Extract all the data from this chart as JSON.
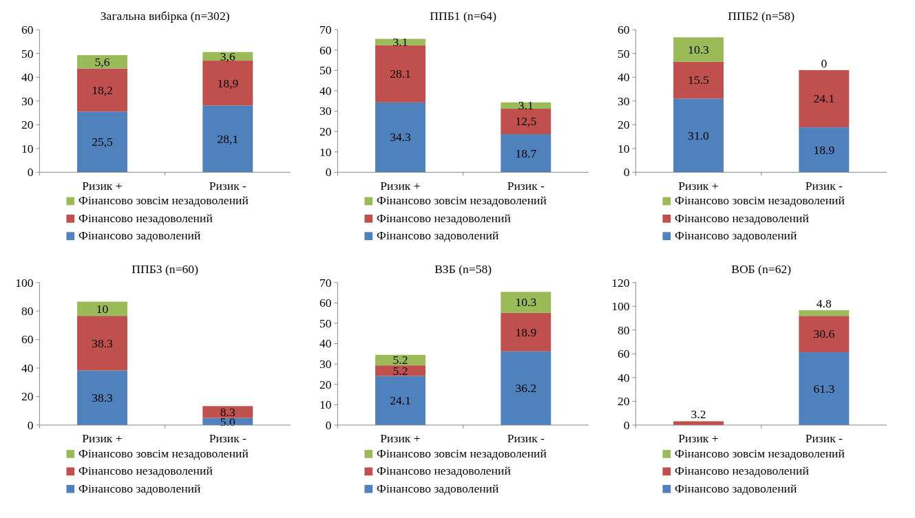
{
  "chart_data": [
    {
      "type": "bar",
      "stacked": true,
      "title": "Загальна вибірка (n=302)",
      "categories": [
        "Ризик +",
        "Ризик -"
      ],
      "ylim": [
        0,
        60
      ],
      "yticks": [
        0,
        10,
        20,
        30,
        40,
        50,
        60
      ],
      "legend": "bottom",
      "grid": false,
      "series": [
        {
          "name": "Фінансово задоволений",
          "color": "#4f81bd",
          "values": [
            25.5,
            28.1
          ],
          "value_labels": [
            "25,5",
            "28,1"
          ]
        },
        {
          "name": "Фінансово незадоволений",
          "color": "#c0504d",
          "values": [
            18.2,
            18.9
          ],
          "value_labels": [
            "18,2",
            "18,9"
          ]
        },
        {
          "name": "Фінансово зовсім незадоволений",
          "color": "#9bbb59",
          "values": [
            5.6,
            3.6
          ],
          "value_labels": [
            "5,6",
            "3,6"
          ]
        }
      ]
    },
    {
      "type": "bar",
      "stacked": true,
      "title": "ППБ1 (n=64)",
      "categories": [
        "Ризик +",
        "Ризик -"
      ],
      "ylim": [
        0,
        70
      ],
      "yticks": [
        0,
        10,
        20,
        30,
        40,
        50,
        60,
        70
      ],
      "legend": "bottom",
      "grid": false,
      "series": [
        {
          "name": "Фінансово задоволений",
          "color": "#4f81bd",
          "values": [
            34.3,
            18.7
          ],
          "value_labels": [
            "34.3",
            "18.7"
          ]
        },
        {
          "name": "Фінансово незадоволений",
          "color": "#c0504d",
          "values": [
            28.1,
            12.5
          ],
          "value_labels": [
            "28.1",
            "12,5"
          ]
        },
        {
          "name": "Фінансово зовсім незадоволений",
          "color": "#9bbb59",
          "values": [
            3.1,
            3.1
          ],
          "value_labels": [
            "3.1",
            "3.1"
          ]
        }
      ]
    },
    {
      "type": "bar",
      "stacked": true,
      "title": "ППБ2 (n=58)",
      "categories": [
        "Ризик +",
        "Ризик -"
      ],
      "ylim": [
        0,
        60
      ],
      "yticks": [
        0,
        10,
        20,
        30,
        40,
        50,
        60
      ],
      "legend": "bottom",
      "grid": false,
      "series": [
        {
          "name": "Фінансово задоволений",
          "color": "#4f81bd",
          "values": [
            31.0,
            18.9
          ],
          "value_labels": [
            "31.0",
            "18.9"
          ]
        },
        {
          "name": "Фінансово незадоволений",
          "color": "#c0504d",
          "values": [
            15.5,
            24.1
          ],
          "value_labels": [
            "15.5",
            "24.1"
          ]
        },
        {
          "name": "Фінансово зовсім незадоволений",
          "color": "#9bbb59",
          "values": [
            10.3,
            0
          ],
          "value_labels": [
            "10.3",
            "0"
          ]
        }
      ]
    },
    {
      "type": "bar",
      "stacked": true,
      "title": "ППБ3 (n=60)",
      "categories": [
        "Ризик +",
        "Ризик -"
      ],
      "ylim": [
        0,
        100
      ],
      "yticks": [
        0,
        20,
        40,
        60,
        80,
        100
      ],
      "legend": "bottom",
      "grid": false,
      "series": [
        {
          "name": "Фінансово задоволений",
          "color": "#4f81bd",
          "values": [
            38.3,
            5.0
          ],
          "value_labels": [
            "38.3",
            "5.0"
          ]
        },
        {
          "name": "Фінансово незадоволений",
          "color": "#c0504d",
          "values": [
            38.3,
            8.3
          ],
          "value_labels": [
            "38.3",
            "8.3"
          ]
        },
        {
          "name": "Фінансово зовсім незадоволений",
          "color": "#9bbb59",
          "values": [
            10,
            0
          ],
          "value_labels": [
            "10",
            null
          ]
        }
      ]
    },
    {
      "type": "bar",
      "stacked": true,
      "title": "ВЗБ (n=58)",
      "categories": [
        "Ризик +",
        "Ризик -"
      ],
      "ylim": [
        0,
        70
      ],
      "yticks": [
        0,
        10,
        20,
        30,
        40,
        50,
        60,
        70
      ],
      "legend": "bottom",
      "grid": false,
      "series": [
        {
          "name": "Фінансово задоволений",
          "color": "#4f81bd",
          "values": [
            24.1,
            36.2
          ],
          "value_labels": [
            "24.1",
            "36.2"
          ]
        },
        {
          "name": "Фінансово незадоволений",
          "color": "#c0504d",
          "values": [
            5.2,
            18.9
          ],
          "value_labels": [
            "5.2",
            "18.9"
          ]
        },
        {
          "name": "Фінансово зовсім незадоволений",
          "color": "#9bbb59",
          "values": [
            5.2,
            10.3
          ],
          "value_labels": [
            "5.2",
            "10.3"
          ]
        }
      ]
    },
    {
      "type": "bar",
      "stacked": true,
      "title": "ВОБ (n=62)",
      "categories": [
        "Ризик +",
        "Ризик -"
      ],
      "ylim": [
        0,
        120
      ],
      "yticks": [
        0,
        20,
        40,
        60,
        80,
        100,
        120
      ],
      "legend": "bottom",
      "grid": false,
      "series": [
        {
          "name": "Фінансово задоволений",
          "color": "#4f81bd",
          "values": [
            0,
            61.3
          ],
          "value_labels": [
            null,
            "61.3"
          ]
        },
        {
          "name": "Фінансово незадоволений",
          "color": "#c0504d",
          "values": [
            3.2,
            30.6
          ],
          "value_labels": [
            "3.2",
            "30.6"
          ]
        },
        {
          "name": "Фінансово зовсім незадоволений",
          "color": "#9bbb59",
          "values": [
            0,
            4.8
          ],
          "value_labels": [
            null,
            "4.8"
          ]
        }
      ]
    }
  ]
}
